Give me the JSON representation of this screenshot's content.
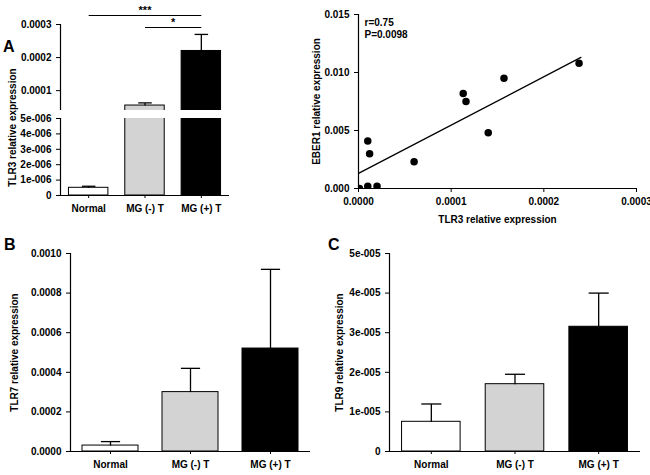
{
  "chart_data": [
    {
      "panel": "A",
      "type": "bar",
      "categories": [
        "Normal",
        "MG (-) T",
        "MG (+) T"
      ],
      "values": [
        5e-07,
        5.5e-05,
        0.00022
      ],
      "errors": [
        1e-07,
        8e-06,
        5e-05
      ],
      "colors": [
        "#ffffff",
        "#d3d3d3",
        "#000000"
      ],
      "ylabel": "TLR3 relative expression",
      "ylim": [
        0,
        0.0003
      ],
      "y_break": [
        5e-06,
        4e-05
      ],
      "yticks": [
        0,
        {
          "value": 1e-06,
          "label": "1e-006"
        },
        {
          "value": 2e-06,
          "label": "2e-006"
        },
        {
          "value": 3e-06,
          "label": "3e-006"
        },
        {
          "value": 4e-06,
          "label": "4e-006"
        },
        {
          "value": 5e-06,
          "label": "5e-006"
        },
        0.0001,
        0.0002,
        0.0003
      ],
      "annotations": [
        {
          "text": "***",
          "from": "Normal",
          "to": "MG (+) T"
        },
        {
          "text": "*",
          "from": "MG (-) T",
          "to": "MG (+) T"
        }
      ]
    },
    {
      "type": "scatter",
      "x": [
        1e-06,
        1e-05,
        2e-05,
        1e-05,
        1.2e-05,
        6e-05,
        0.000113,
        0.000116,
        0.00014,
        0.000157,
        0.000238
      ],
      "y": [
        0.0,
        0.0002,
        0.0002,
        0.0041,
        0.003,
        0.0023,
        0.0082,
        0.0075,
        0.0048,
        0.0095,
        0.0108
      ],
      "fit": {
        "x": [
          0,
          0.00024
        ],
        "y": [
          0.0013,
          0.0113
        ]
      },
      "color": "#000000",
      "xlabel": "TLR3 relative expression",
      "ylabel": "EBER1 relative expression",
      "xlim": [
        0,
        0.0003
      ],
      "ylim": [
        0,
        0.015
      ],
      "xticks": [
        {
          "value": 0,
          "label": "0.0000"
        },
        {
          "value": 0.0001,
          "label": "0.0001"
        },
        {
          "value": 0.0002,
          "label": "0.0002"
        },
        {
          "value": 0.0003,
          "label": "0.0003"
        }
      ],
      "yticks": [
        {
          "value": 0,
          "label": "0.000"
        },
        {
          "value": 0.005,
          "label": "0.005"
        },
        {
          "value": 0.01,
          "label": "0.010"
        },
        {
          "value": 0.015,
          "label": "0.015"
        }
      ],
      "annotations": [
        "r=0.75",
        "P=0.0098"
      ]
    },
    {
      "panel": "B",
      "type": "bar",
      "categories": [
        "Normal",
        "MG (-) T",
        "MG (+) T"
      ],
      "values": [
        3e-05,
        0.0003,
        0.00052
      ],
      "errors": [
        2e-05,
        0.00012,
        0.0004
      ],
      "colors": [
        "#ffffff",
        "#d3d3d3",
        "#000000"
      ],
      "ylabel": "TLR7 relative expression",
      "ylim": [
        0,
        0.001
      ],
      "yticks": [
        {
          "value": 0,
          "label": "0.0000"
        },
        {
          "value": 0.0002,
          "label": "0.0002"
        },
        {
          "value": 0.0004,
          "label": "0.0004"
        },
        {
          "value": 0.0006,
          "label": "0.0006"
        },
        {
          "value": 0.0008,
          "label": "0.0008"
        },
        {
          "value": 0.001,
          "label": "0.0010"
        }
      ]
    },
    {
      "panel": "C",
      "type": "bar",
      "categories": [
        "Normal",
        "MG (-) T",
        "MG (+) T"
      ],
      "values": [
        7.5e-06,
        1.7e-05,
        3.15e-05
      ],
      "errors": [
        4.5e-06,
        2.5e-06,
        8.5e-06
      ],
      "colors": [
        "#ffffff",
        "#d3d3d3",
        "#000000"
      ],
      "ylabel": "TLR9 relative expression",
      "ylim": [
        0,
        5e-05
      ],
      "yticks": [
        0,
        {
          "value": 1e-05,
          "label": "1e-005"
        },
        {
          "value": 2e-05,
          "label": "2e-005"
        },
        {
          "value": 3e-05,
          "label": "3e-005"
        },
        {
          "value": 4e-05,
          "label": "4e-005"
        },
        {
          "value": 5e-05,
          "label": "5e-005"
        }
      ]
    }
  ]
}
